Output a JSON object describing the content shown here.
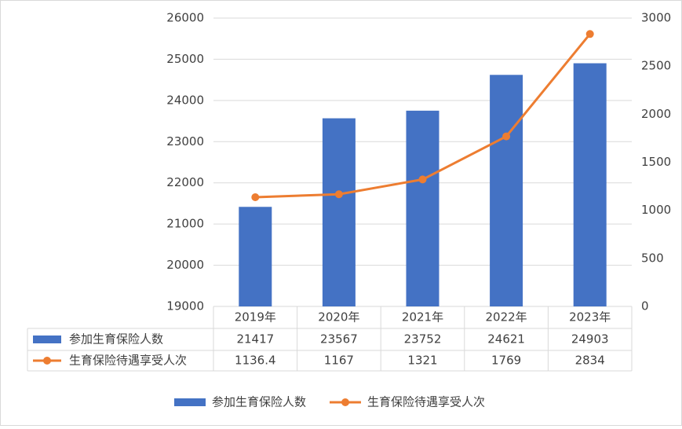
{
  "chart_data": {
    "type": "bar",
    "categories": [
      "2019年",
      "2020年",
      "2021年",
      "2022年",
      "2023年"
    ],
    "series": [
      {
        "name": "参加生育保险人数",
        "color": "#4472c4",
        "values": [
          21417,
          23567,
          23752,
          24621,
          24903
        ]
      },
      {
        "name": "生育保险待遇享受人次",
        "color": "#ed7d31",
        "type": "line",
        "axis": "y2",
        "values": [
          1136.4,
          1167,
          1321,
          1769,
          2834
        ]
      }
    ],
    "ylim": [
      19000,
      26000
    ],
    "yticks": [
      19000,
      20000,
      21000,
      22000,
      23000,
      24000,
      25000,
      26000
    ],
    "y2lim": [
      0,
      3000
    ],
    "y2ticks": [
      0,
      500,
      1000,
      1500,
      2000,
      2500,
      3000
    ],
    "grid": true,
    "legend": "bottom"
  }
}
